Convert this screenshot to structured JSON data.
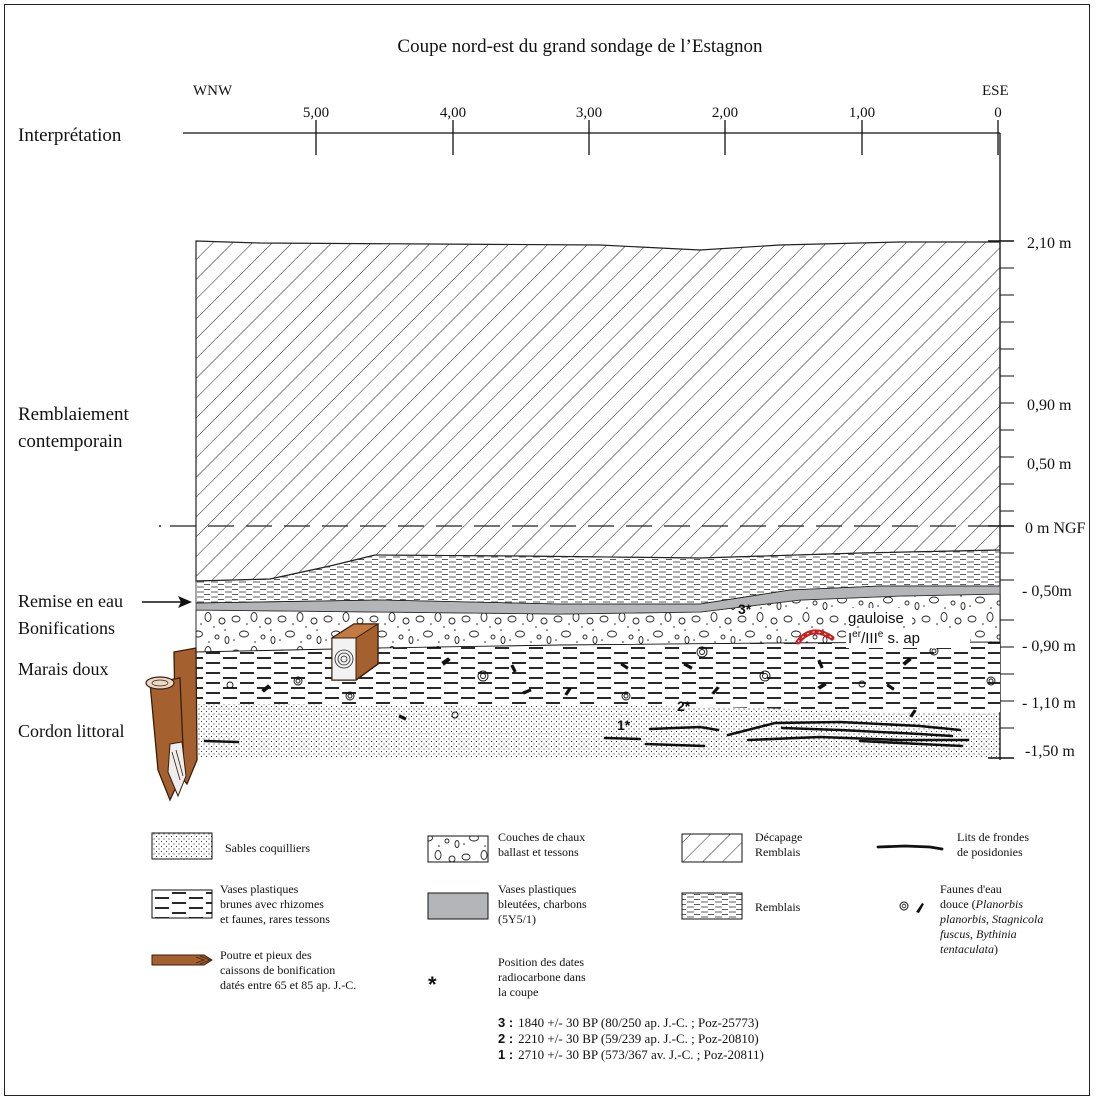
{
  "title": "Coupe nord-est du  grand sondage de l’Estagnon",
  "orientation": {
    "left": "WNW",
    "right": "ESE"
  },
  "horizontal_axis": {
    "label": "Interprétation",
    "ticks": [
      "5,00",
      "4,00",
      "3,00",
      "2,00",
      "1,00",
      "0"
    ]
  },
  "vertical_axis": {
    "ticks": [
      "2,10 m",
      "0,90 m",
      "0,50 m",
      "0 m NGF",
      "- 0,50m",
      "- 0,90 m",
      "- 1,10 m",
      "-1,50 m"
    ]
  },
  "left_labels": {
    "remblaiement_1": "Remblaiement",
    "remblaiement_2": "contemporain",
    "remise": "Remise en eau",
    "bonifications": "Bonifications",
    "marais": "Marais doux",
    "cordon": "Cordon littoral"
  },
  "section_labels": {
    "gauloise": "gauloise",
    "century_a": "I",
    "century_sup1": "er",
    "century_b": "/III",
    "century_sup2": "e",
    "century_c": " s. ap",
    "marker3": "3*",
    "marker2": "2*",
    "marker1": "1*"
  },
  "colors": {
    "wood": "#a5602f",
    "wood_dark": "#6e3a17",
    "bluish_clay": "#b4b5b8",
    "red_arc": "#c8201e",
    "line": "#111111"
  },
  "legend": {
    "sables": "Sables coquilliers",
    "chaux_1": "Couches de chaux",
    "chaux_2": "ballast et tessons",
    "decapage_1": "Décapage",
    "decapage_2": "Remblais",
    "lits_1": "Lits de frondes",
    "lits_2": "de posidonies",
    "vases_brunes_1": "Vases plastiques",
    "vases_brunes_2": "brunes avec rhizomes",
    "vases_brunes_3": "et faunes, rares tessons",
    "vases_bleutees_1": "Vases plastiques",
    "vases_bleutees_2": "bleutées, charbons",
    "vases_bleutees_3": "(5Y5/1)",
    "remblais": "Remblais",
    "faunes_1": "Faunes d'eau",
    "faunes_2a": "douce (",
    "faunes_2b": "Planorbis",
    "faunes_3a": "planorbis",
    "faunes_3b": ", ",
    "faunes_3c": "Stagnicola",
    "faunes_4a": "fuscus",
    "faunes_4b": ", ",
    "faunes_4c": "Bythinia",
    "faunes_5a": "tentaculata",
    "faunes_5b": ")",
    "poutre_1": "Poutre et pieux des",
    "poutre_2": "caissons de bonification",
    "poutre_3": "datés entre 65 et 85 ap. J.-C.",
    "position_1": "Position des dates",
    "position_2": "radiocarbone dans",
    "position_3": "la coupe"
  },
  "dates": [
    {
      "num": "3 :",
      "text": "1840 +/- 30 BP (80/250 ap. J.-C. ; Poz-25773)"
    },
    {
      "num": "2 :",
      "text": "2210 +/- 30 BP (59/239 ap. J.-C. ; Poz-20810)"
    },
    {
      "num": "1 :",
      "text": "2710 +/- 30 BP (573/367 av. J.-C. ; Poz-20811)"
    }
  ]
}
